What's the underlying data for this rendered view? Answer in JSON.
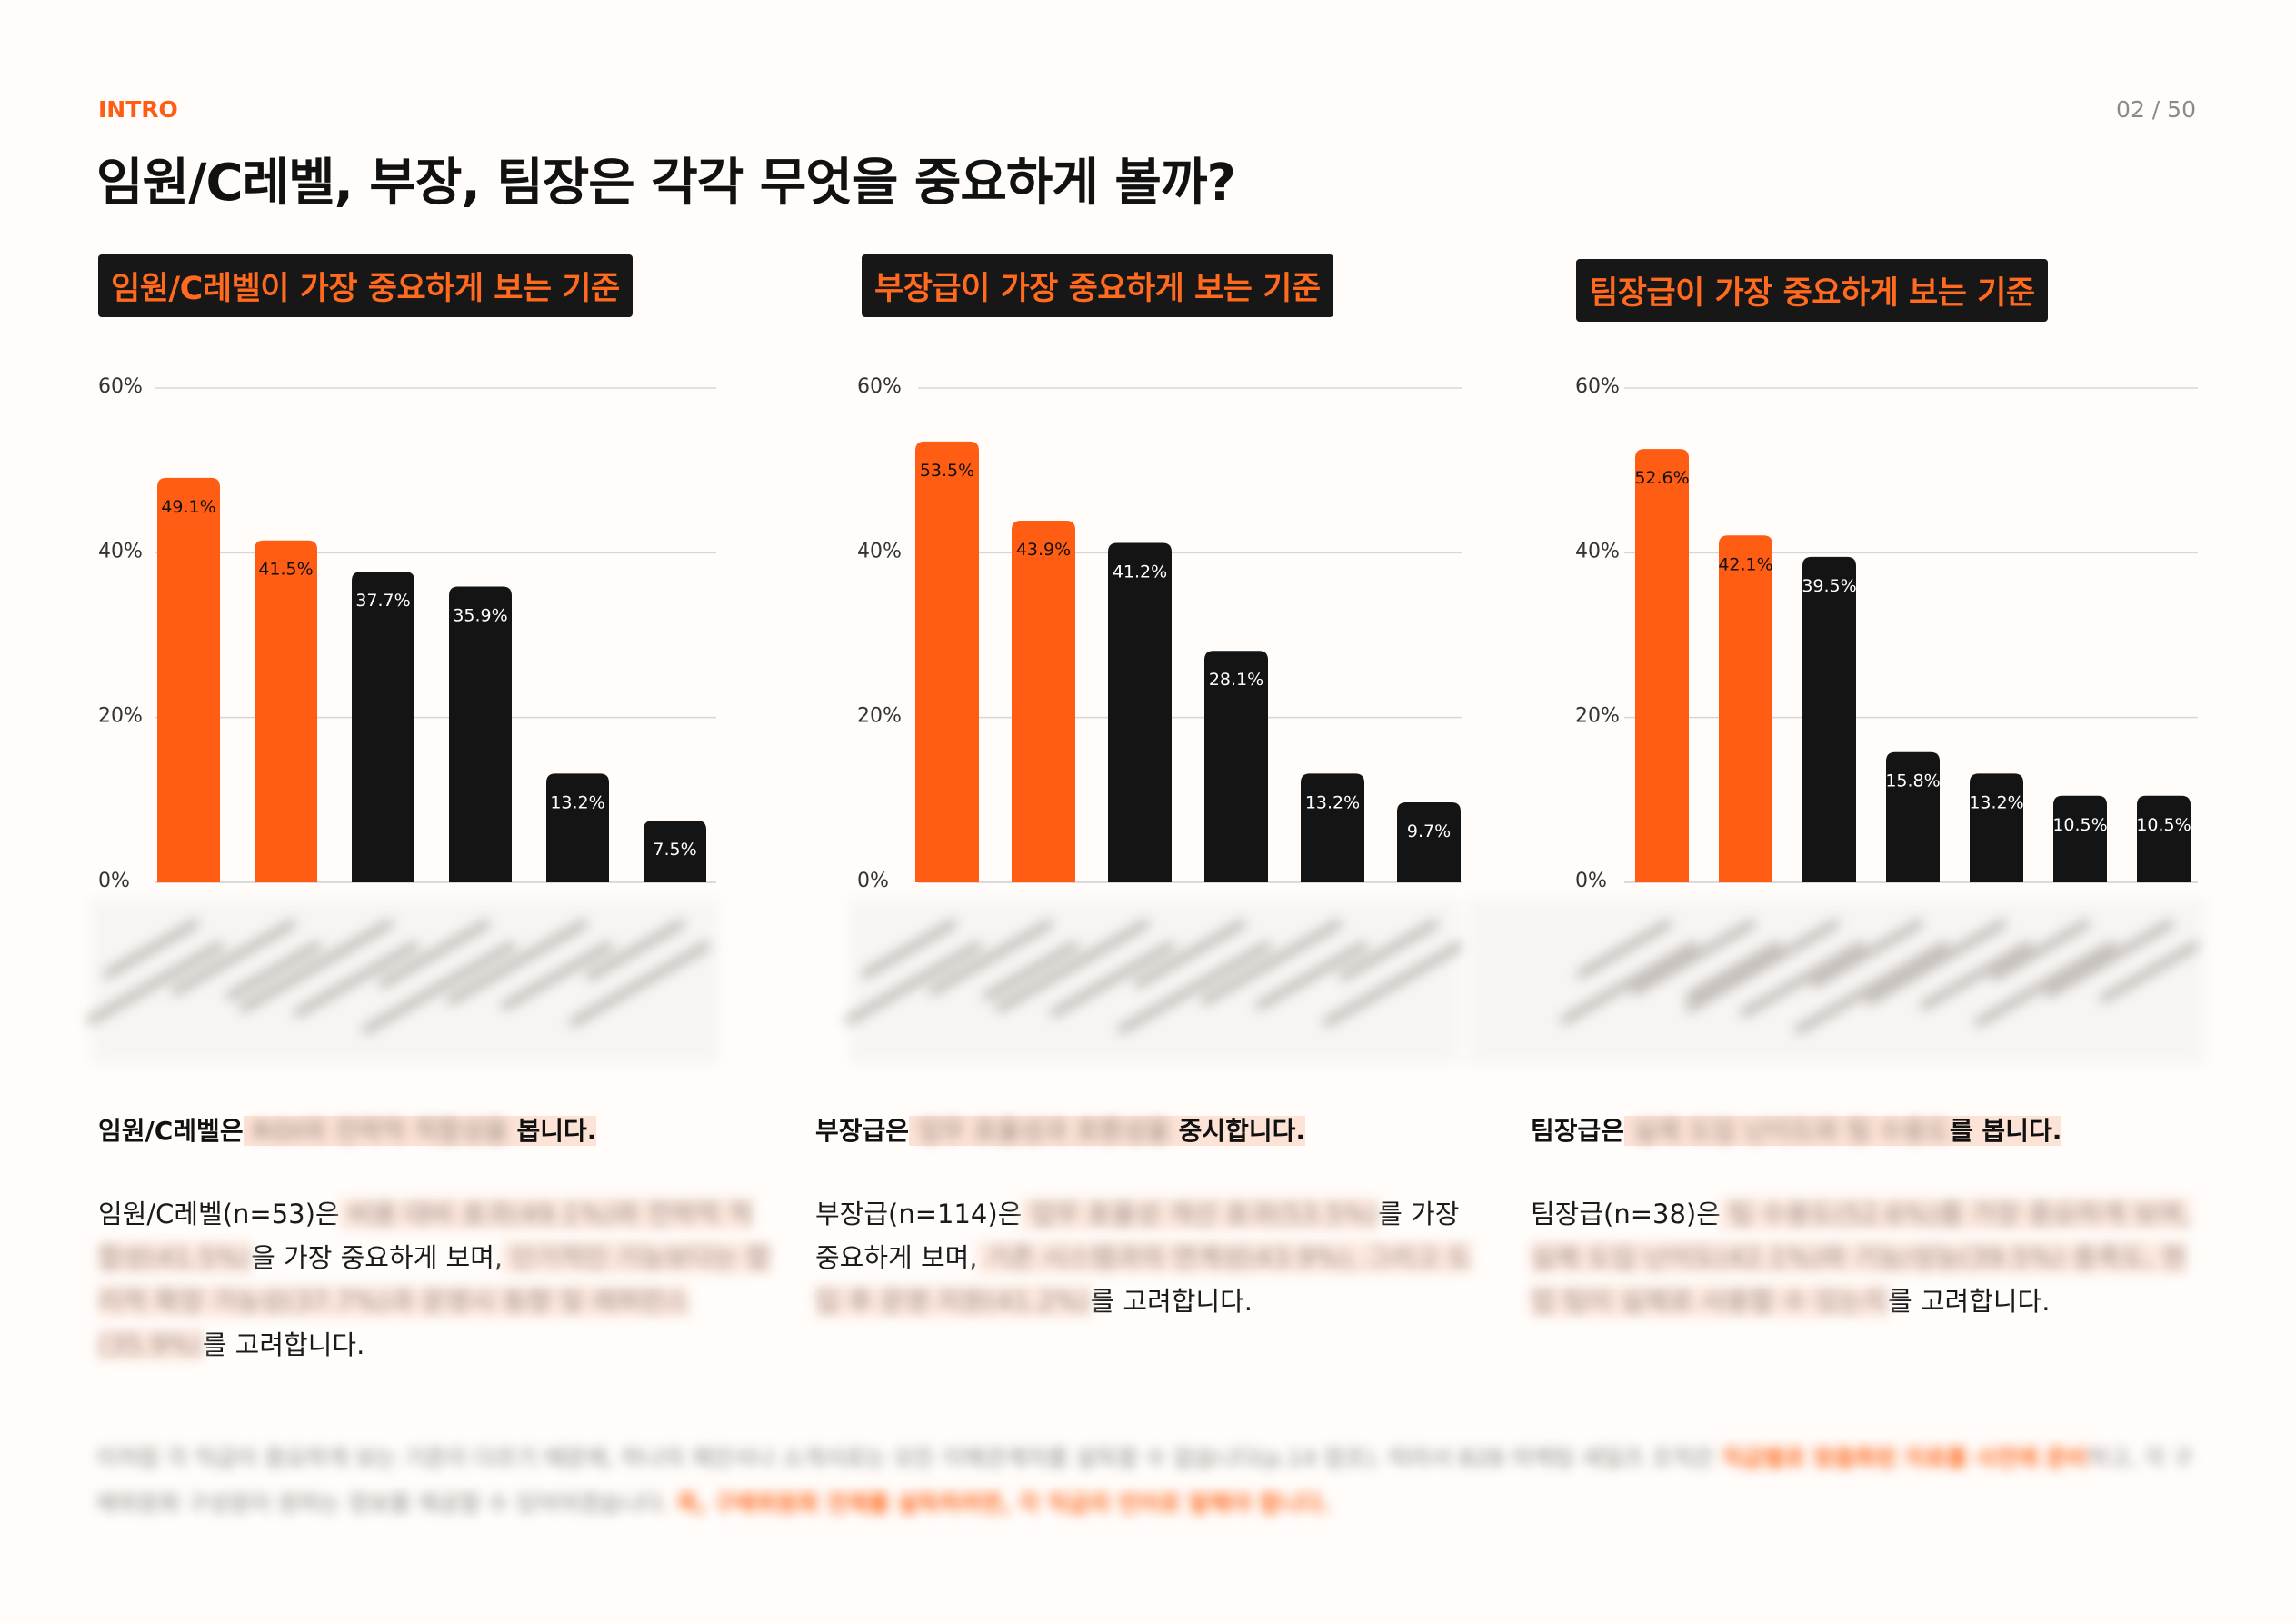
{
  "header": {
    "kicker": "INTRO",
    "page_number": "02 / 50",
    "title": "임원/C레벨, 부장, 팀장은 각각 무엇을 중요하게 볼까?"
  },
  "colors": {
    "accent": "#ff5c14",
    "dark_bar": "#141414",
    "tag_bg": "#171717",
    "highlight": "#fde3d6"
  },
  "panels": [
    {
      "tag": "임원/C레벨이 가장 중요하게 보는 기준",
      "headline_prefix": "임원/C레벨은",
      "headline_suffix": "봅니다.",
      "body_prefix": "임원/C레벨(n=53)은",
      "body_mid": "을 가장 중요하게 보며,",
      "body_suffix": "를 고려합니다."
    },
    {
      "tag": "부장급이 가장 중요하게 보는 기준",
      "headline_prefix": "부장급은",
      "headline_suffix": "중시합니다.",
      "body_prefix": "부장급(n=114)은",
      "body_mid": "를 가장 중요하게 보며,",
      "body_suffix": "를 고려합니다."
    },
    {
      "tag": "팀장급이 가장 중요하게 보는 기준",
      "headline_prefix": "팀장급은",
      "headline_suffix": "를 봅니다.",
      "body_prefix": "팀장급(n=38)은",
      "body_mid": "",
      "body_suffix": "를 고려합니다."
    }
  ],
  "chart_data": [
    {
      "type": "bar",
      "title": "임원/C레벨이 가장 중요하게 보는 기준",
      "ylim": [
        0,
        60
      ],
      "yticks": [
        "0%",
        "20%",
        "40%",
        "60%"
      ],
      "grid": true,
      "values": [
        49.1,
        41.5,
        37.7,
        35.9,
        13.2,
        7.5
      ],
      "value_labels": [
        "49.1%",
        "41.5%",
        "37.7%",
        "35.9%",
        "13.2%",
        "7.5%"
      ],
      "highlight": [
        true,
        true,
        false,
        false,
        false,
        false
      ]
    },
    {
      "type": "bar",
      "title": "부장급이 가장 중요하게 보는 기준",
      "ylim": [
        0,
        60
      ],
      "yticks": [
        "0%",
        "20%",
        "40%",
        "60%"
      ],
      "grid": true,
      "values": [
        53.5,
        43.9,
        41.2,
        28.1,
        13.2,
        9.7
      ],
      "value_labels": [
        "53.5%",
        "43.9%",
        "41.2%",
        "28.1%",
        "13.2%",
        "9.7%"
      ],
      "highlight": [
        true,
        true,
        false,
        false,
        false,
        false
      ]
    },
    {
      "type": "bar",
      "title": "팀장급이 가장 중요하게 보는 기준",
      "ylim": [
        0,
        60
      ],
      "yticks": [
        "0%",
        "20%",
        "40%",
        "60%"
      ],
      "grid": true,
      "values": [
        52.6,
        42.1,
        39.5,
        15.8,
        13.2,
        10.5,
        10.5
      ],
      "value_labels": [
        "52.6%",
        "42.1%",
        "39.5%",
        "15.8%",
        "13.2%",
        "10.5%",
        "10.5%"
      ],
      "highlight": [
        true,
        true,
        false,
        false,
        false,
        false,
        false
      ]
    }
  ]
}
